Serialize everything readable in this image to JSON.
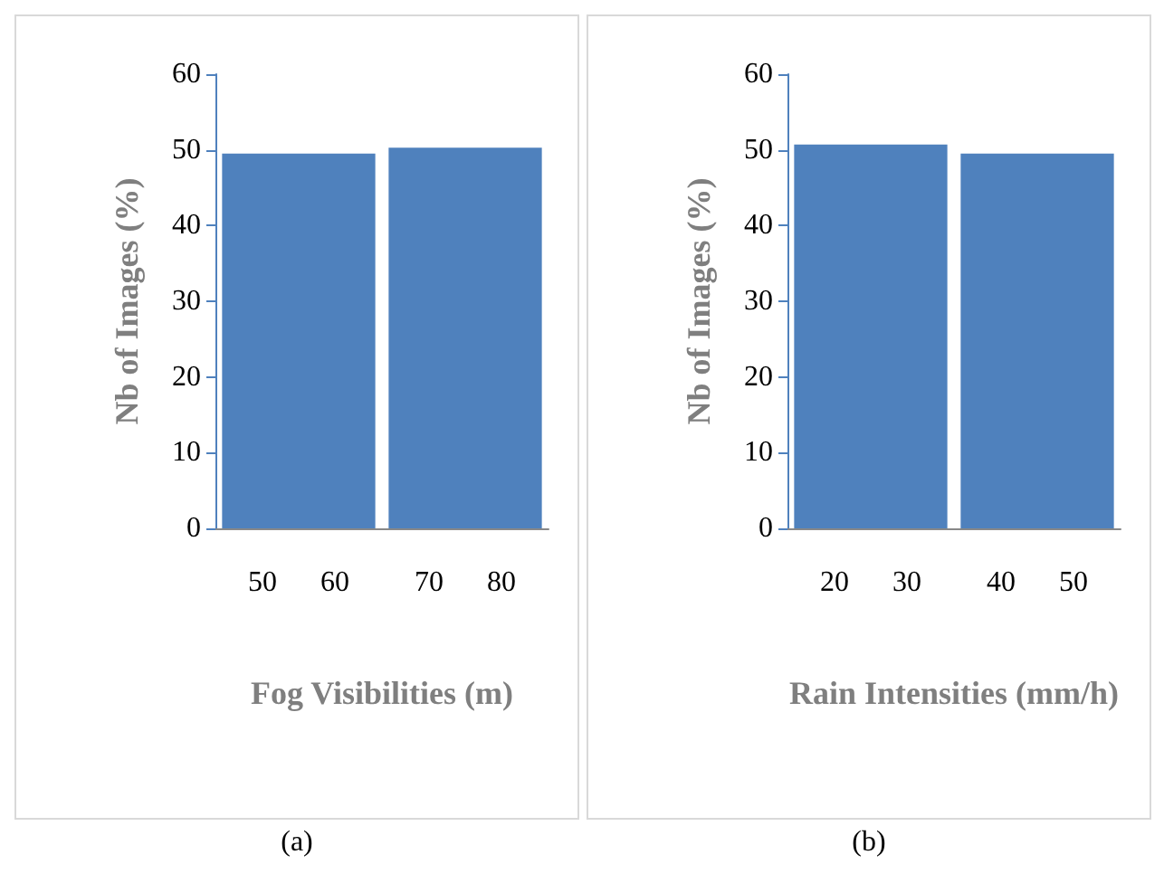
{
  "chart_data": [
    {
      "type": "bar",
      "categories": [
        "50      60",
        "70      80"
      ],
      "values": [
        49.5,
        50.3
      ],
      "color": "#4f81bd",
      "xlabel": "Fog Visibilities (m)",
      "ylabel": "Nb of Images (%)",
      "ylim": [
        0,
        60
      ],
      "yticks": [
        0,
        10,
        20,
        30,
        40,
        50,
        60
      ],
      "grid": false,
      "annotations": [
        "(a)"
      ]
    },
    {
      "type": "bar",
      "categories": [
        "20      30",
        "40      50"
      ],
      "values": [
        50.7,
        49.5
      ],
      "color": "#4f81bd",
      "xlabel": "Rain Intensities (mm/h)",
      "ylabel": "Nb of Images (%)",
      "ylim": [
        0,
        60
      ],
      "yticks": [
        0,
        10,
        20,
        30,
        40,
        50,
        60
      ],
      "grid": false,
      "annotations": [
        "(b)"
      ]
    }
  ]
}
